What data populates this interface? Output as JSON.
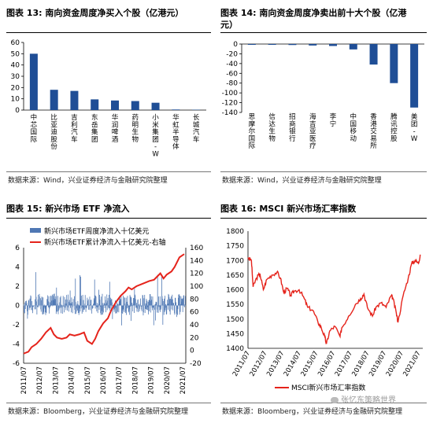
{
  "panels": {
    "p13": {
      "title": "图表 13: 南向资金周度净买入个股（亿港元）",
      "source": "数据来源：Wind，兴业证券经济与金融研究院整理"
    },
    "p14": {
      "title_line1": "图表 14: 南向资金周度净卖出前十大个股（亿港",
      "title_line2": "元）",
      "source": "数据来源：Wind，兴业证券经济与金融研究院整理"
    },
    "p15": {
      "title": "图表 15: 新兴市场 ETF 净流入",
      "source": "数据来源：Bloomberg，兴业证券经济与金融研究院整理"
    },
    "p16": {
      "title": "图表 16: MSCI 新兴市场汇率指数",
      "source": "数据来源：Bloomberg，兴业证券经济与金融研究院整理"
    }
  },
  "watermark": "张忆东策略世界",
  "colors": {
    "primary": "#1f4e96",
    "red": "#e5231b",
    "etf_bar": "#4f78b4"
  },
  "chart_data": [
    {
      "id": "fig13",
      "type": "bar",
      "categories": [
        "中芯国际",
        "比亚迪股份",
        "吉利汽车",
        "东岳集团",
        "华润啤酒",
        "药明生物",
        "小米集团-W",
        "华虹半导体",
        "长城汽车"
      ],
      "values": [
        50,
        18,
        17,
        9.5,
        8.5,
        8,
        6.5,
        0.5,
        0.3
      ],
      "ylim": [
        0,
        60
      ],
      "yticks": [
        0,
        10,
        20,
        30,
        40,
        50,
        60
      ]
    },
    {
      "id": "fig14",
      "type": "bar",
      "categories": [
        "思摩尔国际",
        "信达生物",
        "招商银行",
        "海吉亚医疗",
        "李宁",
        "中国移动",
        "香港交易所",
        "腾讯控股",
        "美团-W"
      ],
      "values": [
        -1,
        -1.5,
        -2,
        -3,
        -4,
        -11,
        -42,
        -80,
        -130
      ],
      "ylim": [
        -140,
        0
      ],
      "yticks": [
        0,
        -20,
        -40,
        -60,
        -80,
        -100,
        -120,
        -140
      ]
    },
    {
      "id": "fig15",
      "type": "bar+line",
      "x_ticks": [
        "2011/07",
        "2012/07",
        "2013/07",
        "2014/07",
        "2015/07",
        "2016/07",
        "2017/07",
        "2018/07",
        "2019/07",
        "2020/07",
        "2021/07"
      ],
      "left_ylim": [
        -6,
        6
      ],
      "left_yticks": [
        -6,
        -4,
        -2,
        0,
        2,
        4,
        6
      ],
      "right_ylim": [
        -20,
        160
      ],
      "right_yticks": [
        -20,
        0,
        20,
        40,
        60,
        80,
        100,
        120,
        140,
        160
      ],
      "series": [
        {
          "name": "新兴市场ETF周度净流入十亿美元",
          "type": "bar",
          "axis": "left"
        },
        {
          "name": "新兴市场ETF累计净流入十亿美元-右轴",
          "type": "line",
          "axis": "right",
          "x": [
            2011.5,
            2011.8,
            2012.0,
            2012.3,
            2012.6,
            2012.9,
            2013.2,
            2013.4,
            2013.6,
            2013.9,
            2014.2,
            2014.4,
            2014.7,
            2015.0,
            2015.3,
            2015.5,
            2015.8,
            2016.0,
            2016.2,
            2016.5,
            2016.8,
            2017.0,
            2017.3,
            2017.6,
            2017.9,
            2018.1,
            2018.3,
            2018.6,
            2018.9,
            2019.1,
            2019.4,
            2019.7,
            2019.9,
            2020.1,
            2020.3,
            2020.5,
            2020.8,
            2021.0,
            2021.3,
            2021.6
          ],
          "values": [
            -5,
            -2,
            5,
            10,
            18,
            28,
            35,
            25,
            20,
            18,
            20,
            25,
            23,
            25,
            28,
            15,
            10,
            18,
            30,
            42,
            50,
            62,
            75,
            85,
            92,
            98,
            95,
            100,
            103,
            105,
            108,
            110,
            115,
            120,
            112,
            118,
            123,
            130,
            145,
            150
          ]
        }
      ]
    },
    {
      "id": "fig16",
      "type": "line",
      "x_ticks": [
        "2011/07",
        "2012/07",
        "2013/07",
        "2014/07",
        "2015/07",
        "2016/07",
        "2017/07",
        "2018/07",
        "2019/07",
        "2020/07",
        "2021/07"
      ],
      "ylim": [
        1400,
        1800
      ],
      "yticks": [
        1400,
        1450,
        1500,
        1550,
        1600,
        1650,
        1700,
        1750,
        1800
      ],
      "series": [
        {
          "name": "MSCI新兴市场汇率指数",
          "x": [
            2011.5,
            2011.7,
            2011.8,
            2012.0,
            2012.2,
            2012.4,
            2012.6,
            2012.9,
            2013.2,
            2013.4,
            2013.6,
            2013.8,
            2014.0,
            2014.2,
            2014.5,
            2014.8,
            2015.0,
            2015.3,
            2015.6,
            2015.8,
            2016.0,
            2016.1,
            2016.3,
            2016.6,
            2016.9,
            2017.0,
            2017.4,
            2017.8,
            2018.1,
            2018.3,
            2018.5,
            2018.8,
            2019.0,
            2019.3,
            2019.6,
            2019.9,
            2020.0,
            2020.2,
            2020.3,
            2020.6,
            2020.9,
            2021.1,
            2021.3,
            2021.5,
            2021.6
          ],
          "values": [
            1710,
            1700,
            1610,
            1640,
            1655,
            1600,
            1635,
            1650,
            1660,
            1640,
            1590,
            1605,
            1580,
            1595,
            1600,
            1570,
            1540,
            1530,
            1490,
            1470,
            1440,
            1415,
            1460,
            1475,
            1440,
            1470,
            1510,
            1550,
            1570,
            1585,
            1540,
            1510,
            1540,
            1555,
            1540,
            1580,
            1570,
            1520,
            1490,
            1580,
            1640,
            1690,
            1700,
            1690,
            1720
          ]
        }
      ]
    }
  ]
}
